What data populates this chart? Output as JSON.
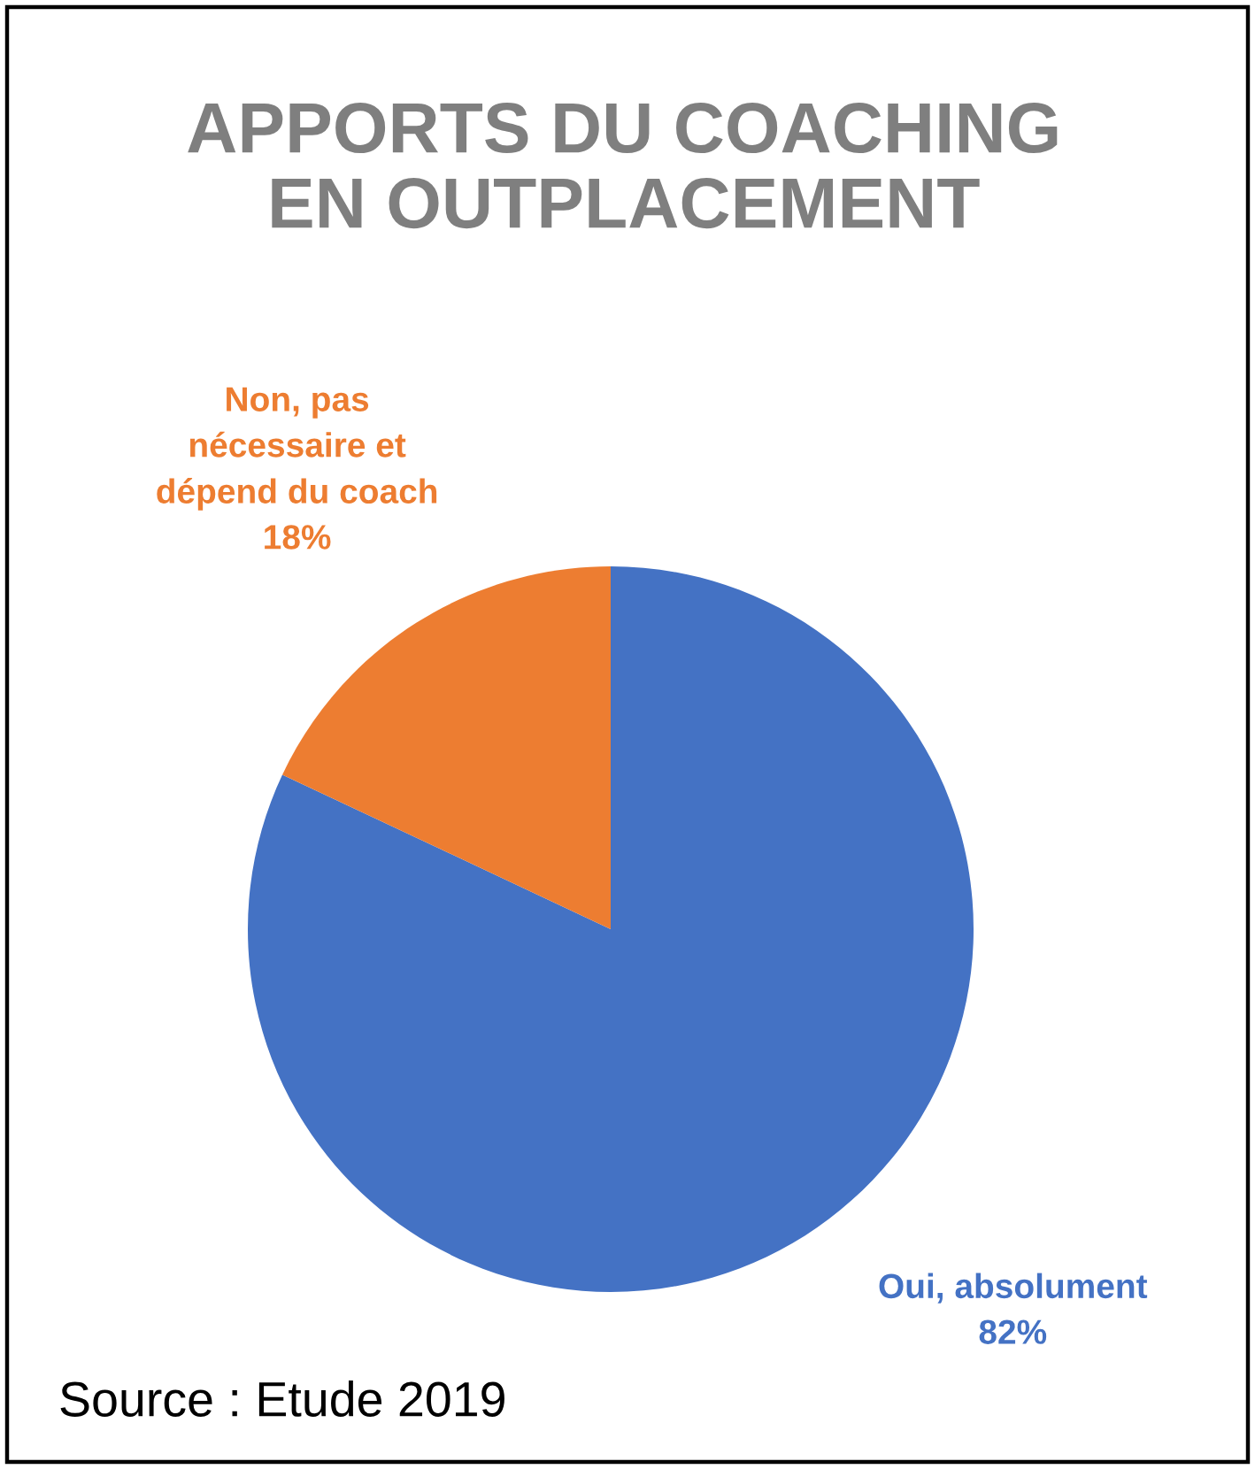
{
  "chart_data": {
    "type": "pie",
    "title": "APPORTS DU COACHING\nEN OUTPLACEMENT",
    "categories": [
      "Oui, absolument",
      "Non, pas\nnécessaire et\ndépend du coach"
    ],
    "values": [
      82,
      18
    ],
    "colors": [
      "#4472c4",
      "#ed7d31"
    ],
    "value_labels": [
      "82%",
      "18%"
    ],
    "annotations": [
      "Source : Etude 2019"
    ]
  }
}
